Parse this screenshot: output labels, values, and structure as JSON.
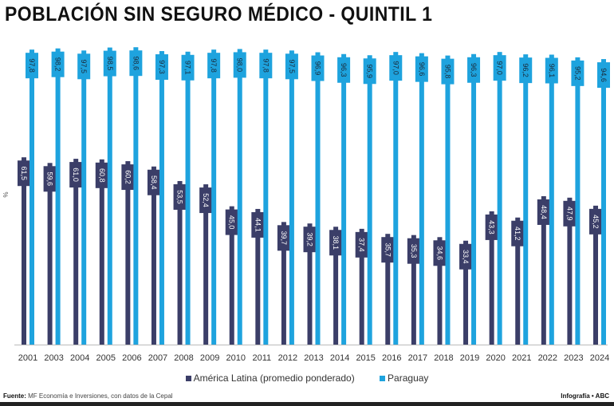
{
  "chart_data": {
    "type": "bar",
    "title": "POBLACIÓN SIN SEGURO MÉDICO - QUINTIL 1",
    "ylabel": "%",
    "ylim": [
      0,
      100
    ],
    "grid": false,
    "legend_position": "bottom",
    "categories": [
      "2001",
      "2003",
      "2004",
      "2005",
      "2006",
      "2007",
      "2008",
      "2009",
      "2010",
      "2011",
      "2012",
      "2013",
      "2014",
      "2015",
      "2016",
      "2017",
      "2018",
      "2019",
      "2020",
      "2021",
      "2022",
      "2023",
      "2024"
    ],
    "series": [
      {
        "name": "América Latina (promedio ponderado)",
        "color": "#3b3e68",
        "values": [
          61.5,
          59.6,
          61.0,
          60.8,
          60.2,
          58.4,
          53.5,
          52.4,
          45.0,
          44.1,
          39.7,
          39.2,
          38.1,
          37.4,
          35.7,
          35.3,
          34.6,
          33.4,
          43.3,
          41.2,
          48.4,
          47.9,
          45.2
        ]
      },
      {
        "name": "Paraguay",
        "color": "#1ea3de",
        "values": [
          97.8,
          98.2,
          97.5,
          98.5,
          98.6,
          97.3,
          97.1,
          97.8,
          98.0,
          97.8,
          97.5,
          96.9,
          96.3,
          95.9,
          97.0,
          96.6,
          95.8,
          96.3,
          97.0,
          96.2,
          96.1,
          95.2,
          94.6
        ]
      }
    ]
  },
  "footer": {
    "source_label": "Fuente:",
    "source_text": "MF Economía e Inversiones, con datos de la Cepal",
    "credit": "Infografía • ABC"
  }
}
